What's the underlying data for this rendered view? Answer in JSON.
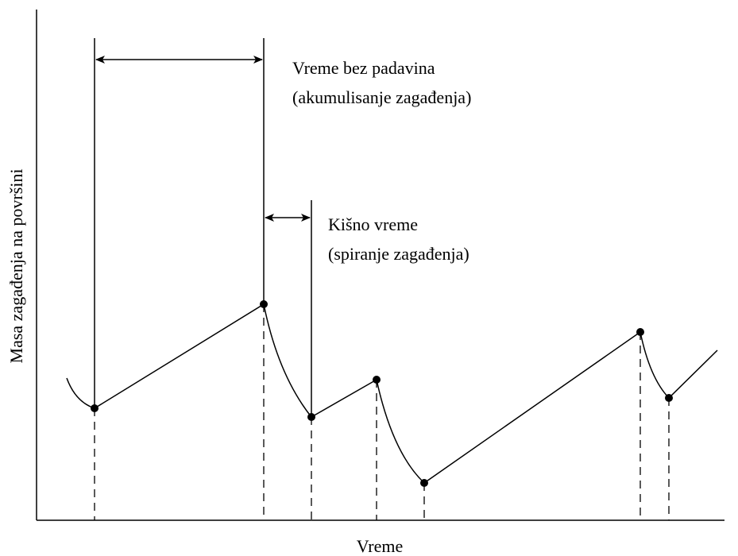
{
  "y_axis_label": "Masa zagađenja na površini",
  "x_axis_label": "Vreme",
  "annotations": [
    {
      "title": "Vreme bez padavina",
      "subtitle": "(akumulisanje zagađenja)"
    },
    {
      "title": "Kišno vreme",
      "subtitle": "(spiranje zagađenja)"
    }
  ]
}
